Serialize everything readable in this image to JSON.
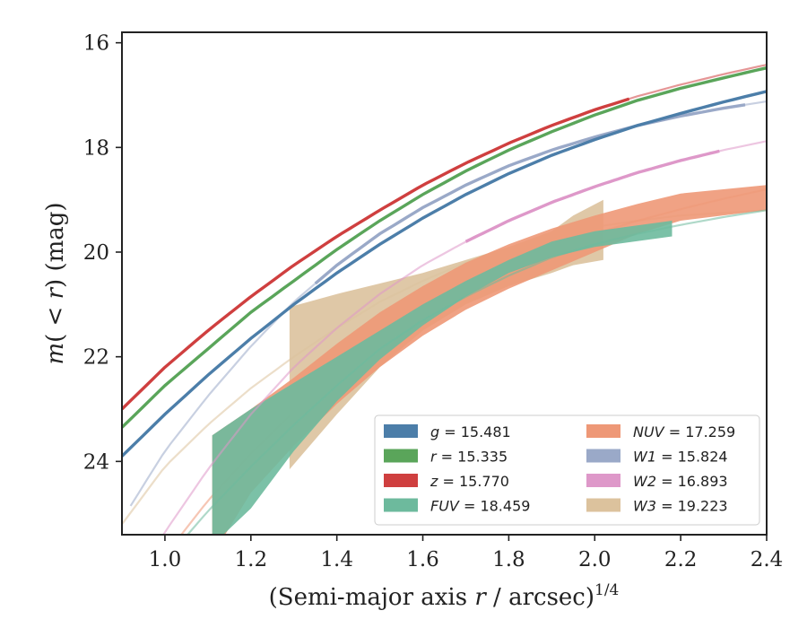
{
  "chart_data": {
    "type": "area",
    "xlabel_prefix": "(Semi-major axis ",
    "xlabel_r": "r",
    "xlabel_suffix": " / arcsec)",
    "xlabel_exponent": "1/4",
    "ylabel_m": "m",
    "ylabel_paren_open": "(",
    "ylabel_lt": " < ",
    "ylabel_r": "r",
    "ylabel_paren_close": ")",
    "ylabel_unit": " (mag)",
    "xlim": [
      0.9,
      2.4
    ],
    "ylim": [
      25.4,
      15.8
    ],
    "y_inverted": true,
    "xticks": [
      "1.0",
      "1.2",
      "1.4",
      "1.6",
      "1.8",
      "2.0",
      "2.2",
      "2.4"
    ],
    "yticks": [
      "16",
      "18",
      "20",
      "22",
      "24"
    ],
    "legend_position": "lower right",
    "legend_columns": 2,
    "series": [
      {
        "name": "g = 15.481",
        "symbol": "g",
        "value": "15.481",
        "color": "#4c7ea9",
        "x": [
          0.9,
          1.0,
          1.1,
          1.2,
          1.3,
          1.4,
          1.5,
          1.6,
          1.7,
          1.8,
          1.9,
          2.0,
          2.1,
          2.2,
          2.3,
          2.4
        ],
        "y": [
          23.9,
          23.1,
          22.35,
          21.65,
          21.0,
          20.4,
          19.85,
          19.35,
          18.9,
          18.5,
          18.15,
          17.85,
          17.58,
          17.35,
          17.13,
          16.93
        ],
        "x_solid_max": 2.4,
        "band_width": 0.12
      },
      {
        "name": "r = 15.335",
        "symbol": "r",
        "value": "15.335",
        "color": "#5aa55a",
        "x": [
          0.9,
          1.0,
          1.1,
          1.2,
          1.3,
          1.4,
          1.5,
          1.6,
          1.7,
          1.8,
          1.9,
          2.0,
          2.1,
          2.2,
          2.3,
          2.4
        ],
        "y": [
          23.35,
          22.55,
          21.85,
          21.15,
          20.55,
          19.95,
          19.4,
          18.9,
          18.45,
          18.05,
          17.7,
          17.38,
          17.1,
          16.87,
          16.67,
          16.48
        ],
        "x_solid_max": 2.4,
        "band_width": 0.12
      },
      {
        "name": "z = 15.770",
        "symbol": "z",
        "value": "15.770",
        "color": "#cf3f3f",
        "x": [
          0.9,
          1.0,
          1.1,
          1.2,
          1.3,
          1.4,
          1.5,
          1.6,
          1.7,
          1.8,
          1.9,
          2.0,
          2.1,
          2.2,
          2.3,
          2.4
        ],
        "y": [
          23.0,
          22.2,
          21.5,
          20.85,
          20.25,
          19.7,
          19.2,
          18.72,
          18.3,
          17.92,
          17.58,
          17.28,
          17.02,
          16.8,
          16.6,
          16.42
        ],
        "x_solid_max": 2.08,
        "band_width": 0.12
      },
      {
        "name": "FUV = 18.459",
        "symbol": "FUV",
        "value": "18.459",
        "color": "#6dba9d",
        "x": [
          0.9,
          1.0,
          1.1,
          1.2,
          1.3,
          1.4,
          1.5,
          1.6,
          1.7,
          1.8,
          1.9,
          2.0,
          2.1,
          2.2,
          2.3,
          2.4
        ],
        "y": [
          27.0,
          25.9,
          24.95,
          24.1,
          23.3,
          22.55,
          21.85,
          21.3,
          20.85,
          20.45,
          20.1,
          19.85,
          19.65,
          19.48,
          19.33,
          19.2
        ],
        "x_solid_min": 1.11,
        "x_solid_max": 2.18,
        "band_upper": [
          23.5,
          23.0,
          22.5,
          22.0,
          21.5,
          21.0,
          20.55,
          20.15,
          19.8,
          19.6,
          19.4
        ],
        "band_lower": [
          25.6,
          24.9,
          23.8,
          22.85,
          22.05,
          21.4,
          20.85,
          20.4,
          20.1,
          19.9,
          19.7
        ],
        "band_x": [
          1.11,
          1.2,
          1.3,
          1.4,
          1.5,
          1.6,
          1.7,
          1.8,
          1.9,
          2.0,
          2.18
        ]
      },
      {
        "name": "NUV = 17.259",
        "symbol": "NUV",
        "value": "17.259",
        "color": "#ee9877",
        "x": [
          0.9,
          1.0,
          1.1,
          1.2,
          1.3,
          1.4,
          1.5,
          1.6,
          1.7,
          1.8,
          1.9,
          2.0,
          2.1,
          2.2,
          2.3,
          2.4
        ],
        "y": [
          27.2,
          25.8,
          24.75,
          23.85,
          23.05,
          22.3,
          21.65,
          21.1,
          20.65,
          20.28,
          19.95,
          19.65,
          19.4,
          19.18,
          18.98,
          18.8
        ],
        "x_solid_min": 1.11,
        "x_solid_max": 2.4,
        "band_upper": [
          23.5,
          23.0,
          22.4,
          21.75,
          21.15,
          20.65,
          20.2,
          19.85,
          19.55,
          19.3,
          19.08,
          18.88,
          18.72
        ],
        "band_lower": [
          25.8,
          24.6,
          23.7,
          22.9,
          22.2,
          21.6,
          21.1,
          20.7,
          20.35,
          20.0,
          19.65,
          19.4,
          19.2
        ],
        "band_x": [
          1.11,
          1.2,
          1.3,
          1.4,
          1.5,
          1.6,
          1.7,
          1.8,
          1.9,
          2.0,
          2.1,
          2.2,
          2.4
        ]
      },
      {
        "name": "W1 = 15.824",
        "symbol": "W1",
        "value": "15.824",
        "color": "#9aa9c8",
        "x": [
          0.92,
          1.0,
          1.1,
          1.2,
          1.3,
          1.4,
          1.5,
          1.6,
          1.7,
          1.8,
          1.9,
          2.0,
          2.1,
          2.2,
          2.3,
          2.4
        ],
        "y": [
          24.85,
          23.8,
          22.75,
          21.8,
          20.95,
          20.25,
          19.65,
          19.15,
          18.72,
          18.35,
          18.05,
          17.8,
          17.58,
          17.4,
          17.25,
          17.12
        ],
        "x_solid_min": 1.35,
        "x_solid_max": 2.35,
        "band_width": 0.12
      },
      {
        "name": "W2 = 16.893",
        "symbol": "W2",
        "value": "16.893",
        "color": "#de98c9",
        "x": [
          0.9,
          1.0,
          1.1,
          1.2,
          1.3,
          1.4,
          1.5,
          1.6,
          1.7,
          1.8,
          1.9,
          2.0,
          2.1,
          2.2,
          2.3,
          2.4
        ],
        "y": [
          26.7,
          25.35,
          24.15,
          23.1,
          22.2,
          21.45,
          20.8,
          20.25,
          19.8,
          19.4,
          19.05,
          18.75,
          18.48,
          18.25,
          18.05,
          17.88
        ],
        "x_solid_min": 1.7,
        "x_solid_max": 2.29,
        "band_width": 0.12
      },
      {
        "name": "W3 = 19.223",
        "symbol": "W3",
        "value": "19.223",
        "color": "#dcc29d",
        "x": [
          0.9,
          1.0,
          1.1,
          1.2,
          1.3,
          1.4,
          1.5,
          1.6,
          1.7,
          1.8,
          1.9,
          2.0,
          2.1,
          2.2,
          2.3,
          2.4
        ],
        "y": [
          25.2,
          24.1,
          23.3,
          22.6,
          22.0,
          21.45,
          20.95,
          20.55,
          20.2,
          19.92,
          19.7,
          19.52,
          19.4,
          19.3,
          19.25,
          19.2
        ],
        "x_solid_min": 1.29,
        "x_solid_max": 2.02,
        "band_upper": [
          21.05,
          20.8,
          20.6,
          20.4,
          20.15,
          19.9,
          19.6,
          19.3,
          19.0
        ],
        "band_lower": [
          24.15,
          23.1,
          22.2,
          21.5,
          21.0,
          20.65,
          20.4,
          20.25,
          20.15
        ],
        "band_x": [
          1.29,
          1.4,
          1.5,
          1.6,
          1.7,
          1.8,
          1.9,
          1.95,
          2.02
        ]
      }
    ]
  }
}
